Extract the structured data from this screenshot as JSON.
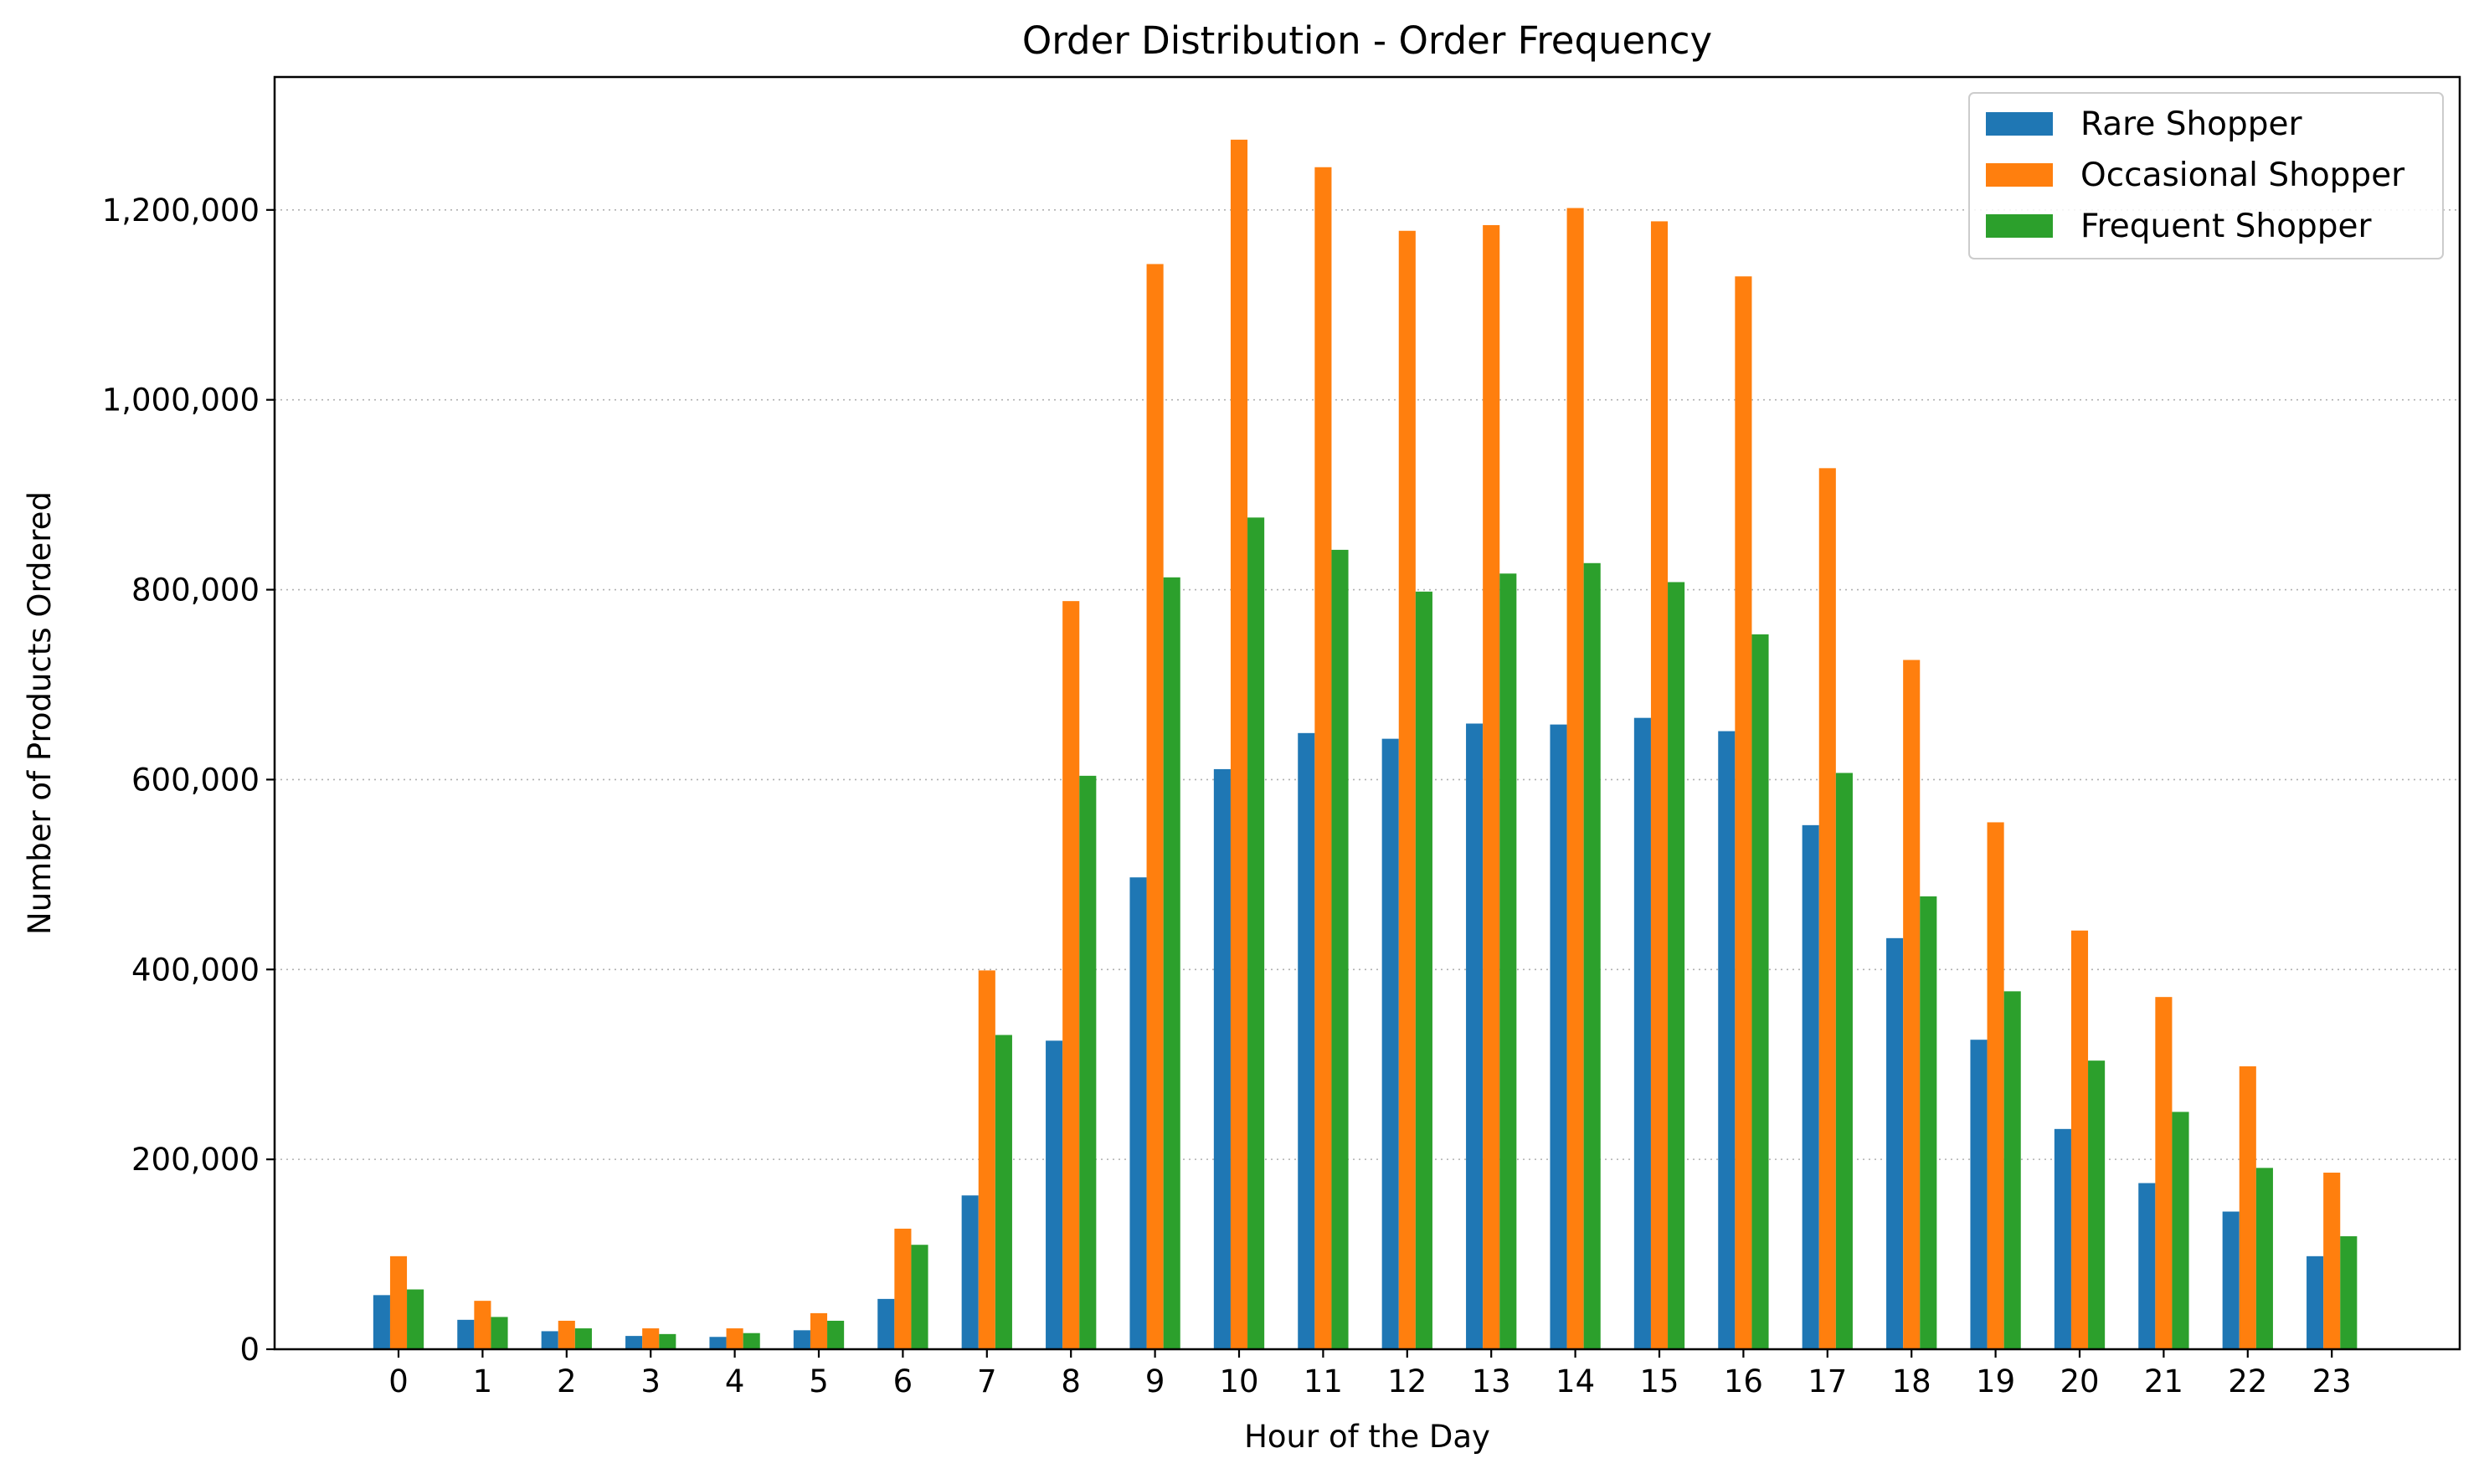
{
  "chart_data": {
    "type": "bar",
    "title": "Order Distribution - Order Frequency",
    "xlabel": "Hour of the Day",
    "ylabel": "Number of Products Ordered",
    "categories": [
      "0",
      "1",
      "2",
      "3",
      "4",
      "5",
      "6",
      "7",
      "8",
      "9",
      "10",
      "11",
      "12",
      "13",
      "14",
      "15",
      "16",
      "17",
      "18",
      "19",
      "20",
      "21",
      "22",
      "23"
    ],
    "series": [
      {
        "name": "Rare Shopper",
        "color": "#1f77b4",
        "values": [
          57000,
          31000,
          19000,
          14000,
          13000,
          20000,
          53000,
          162000,
          325000,
          497000,
          611000,
          649000,
          643000,
          659000,
          658000,
          665000,
          651000,
          552000,
          433000,
          326000,
          232000,
          175000,
          145000,
          98000
        ]
      },
      {
        "name": "Occasional Shopper",
        "color": "#ff7f0e",
        "values": [
          98000,
          51000,
          30000,
          22000,
          22000,
          38000,
          127000,
          399000,
          788000,
          1143000,
          1274000,
          1245000,
          1178000,
          1184000,
          1202000,
          1188000,
          1130000,
          928000,
          726000,
          555000,
          441000,
          371000,
          298000,
          186000
        ]
      },
      {
        "name": "Frequent Shopper",
        "color": "#2ca02c",
        "values": [
          63000,
          34000,
          22000,
          16000,
          17000,
          30000,
          110000,
          331000,
          604000,
          813000,
          876000,
          842000,
          798000,
          817000,
          828000,
          808000,
          753000,
          607000,
          477000,
          377000,
          304000,
          250000,
          191000,
          119000
        ]
      }
    ],
    "ylim": [
      0,
      1340000
    ],
    "yticks": [
      0,
      200000,
      400000,
      600000,
      800000,
      1000000,
      1200000
    ],
    "ytick_labels": [
      "0",
      "200,000",
      "400,000",
      "600,000",
      "800,000",
      "1,000,000",
      "1,200,000"
    ],
    "grid": "y-dotted",
    "legend_position": "top-right"
  }
}
